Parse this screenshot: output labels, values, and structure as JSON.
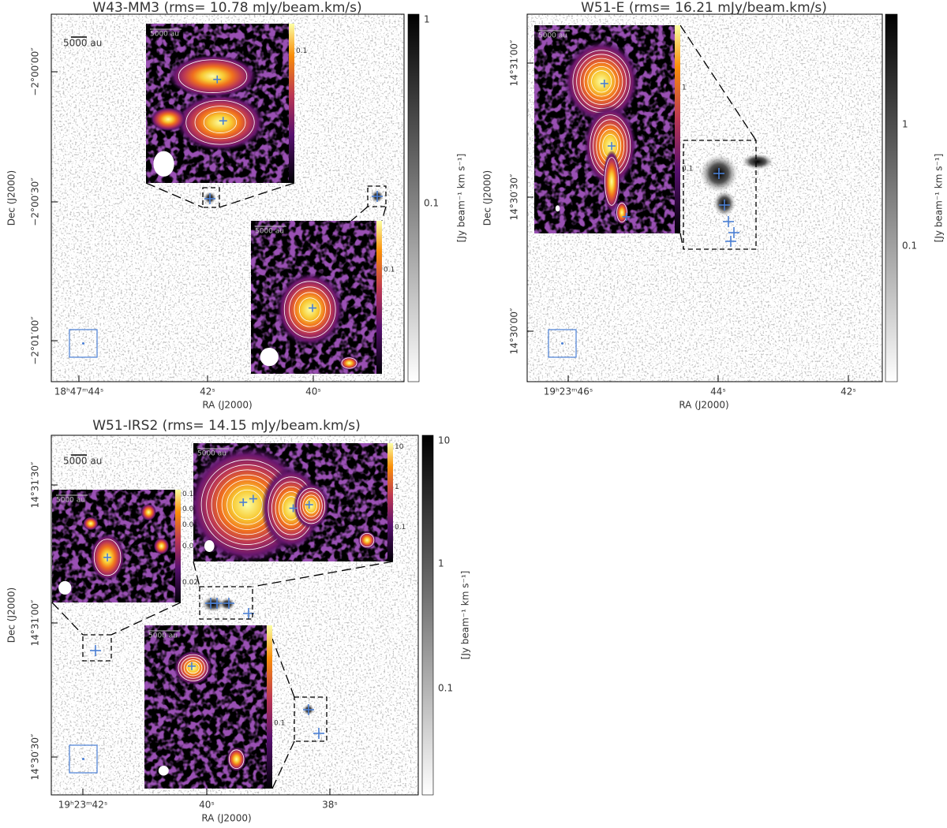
{
  "panels": [
    {
      "title": "W43-MM3 (rms= 10.78 mJy/beam.km/s)",
      "scale_bar": "5000 au",
      "x_label": "RA (J2000)",
      "y_label": "Dec (J2000)",
      "colorbar_label": "[Jy beam⁻¹ km s⁻¹]",
      "colorbar_ticks": [
        "1",
        "0.1"
      ],
      "x_ticks": [
        "18ʰ47ᵐ44ˢ",
        "42ˢ",
        "40ˢ"
      ],
      "y_ticks": [
        "−2°00′00″",
        "−2°00′30″",
        "−2°01′00″"
      ],
      "insets": [
        {
          "scale_bar": "5000 au",
          "colorbar_ticks": [
            "0.1"
          ]
        },
        {
          "scale_bar": "5000 au",
          "colorbar_ticks": [
            "0.1"
          ]
        }
      ]
    },
    {
      "title": "W51-E (rms= 16.21 mJy/beam.km/s)",
      "x_label": "RA (J2000)",
      "y_label": "Dec (J2000)",
      "colorbar_label": "[Jy beam⁻¹ km s⁻¹]",
      "colorbar_ticks": [
        "1",
        "0.1"
      ],
      "x_ticks": [
        "19ʰ23ᵐ46ˢ",
        "44ˢ",
        "42ˢ"
      ],
      "y_ticks": [
        "14°31′00″",
        "14°30′30″",
        "14°30′00″"
      ],
      "insets": [
        {
          "scale_bar": "5000 au",
          "colorbar_ticks": [
            "1",
            "0.1"
          ]
        }
      ]
    },
    {
      "title": "W51-IRS2 (rms= 14.15 mJy/beam.km/s)",
      "scale_bar": "5000 au",
      "x_label": "RA (J2000)",
      "y_label": "Dec (J2000)",
      "colorbar_label": "[Jy beam⁻¹ km s⁻¹]",
      "colorbar_ticks": [
        "10",
        "1",
        "0.1"
      ],
      "x_ticks": [
        "19ʰ23ᵐ42ˢ",
        "40ˢ",
        "38ˢ"
      ],
      "y_ticks": [
        "14°31′30″",
        "14°31′00″",
        "14°30′30″"
      ],
      "insets": [
        {
          "scale_bar": "5000 au",
          "colorbar_ticks": [
            "0.1",
            "0.08",
            "0.06",
            "0.04",
            "0.02"
          ]
        },
        {
          "scale_bar": "5000 au",
          "colorbar_ticks": [
            "10",
            "1",
            "0.1"
          ]
        },
        {
          "scale_bar": "5000 au",
          "colorbar_ticks": [
            "0.1"
          ]
        }
      ]
    }
  ]
}
